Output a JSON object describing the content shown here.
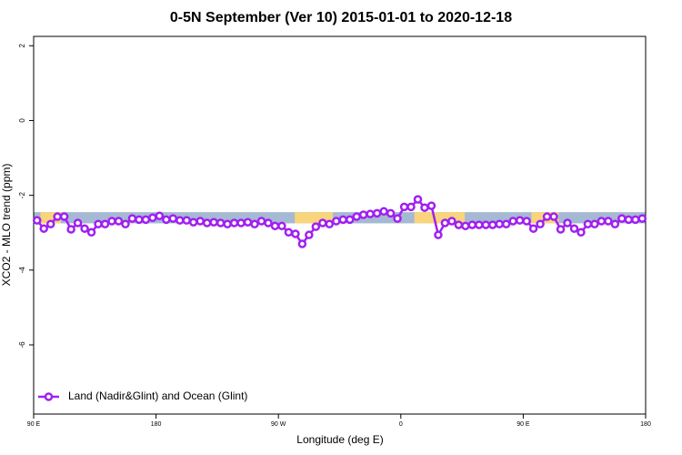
{
  "chart_data": {
    "type": "line",
    "title": "0-5N September (Ver 10)   2015-01-01 to 2020-12-18",
    "x_label": "Longitude (deg E)",
    "y_label": "XCO2 - MLO trend (ppm)",
    "x": [
      92.5,
      97.5,
      102.5,
      107.5,
      112.5,
      117.5,
      122.5,
      127.5,
      132.5,
      137.5,
      142.5,
      147.5,
      152.5,
      157.5,
      162.5,
      167.5,
      172.5,
      177.5,
      182.5,
      187.5,
      192.5,
      197.5,
      202.5,
      207.5,
      212.5,
      217.5,
      222.5,
      227.5,
      232.5,
      237.5,
      242.5,
      247.5,
      252.5,
      257.5,
      262.5,
      267.5,
      272.5,
      277.5,
      282.5,
      287.5,
      292.5,
      297.5,
      302.5,
      307.5,
      312.5,
      317.5,
      322.5,
      327.5,
      332.5,
      337.5,
      342.5,
      347.5,
      352.5,
      357.5,
      362.5,
      367.5,
      372.5,
      377.5,
      382.5,
      387.5,
      392.5,
      397.5,
      402.5,
      407.5,
      412.5,
      417.5,
      422.5,
      427.5,
      432.5,
      437.5,
      442.5,
      447.5,
      452.5,
      457.5,
      462.5,
      467.5,
      472.5,
      477.5,
      482.5,
      487.5,
      492.5,
      497.5,
      502.5,
      507.5,
      512.5,
      517.5,
      522.5,
      527.5,
      532.5,
      537.5
    ],
    "series": [
      {
        "name": "Land (Nadir&Glint) and Ocean (Glint)",
        "color": "#a020f0",
        "values": [
          -2.67,
          -2.89,
          -2.77,
          -2.57,
          -2.57,
          -2.91,
          -2.74,
          -2.89,
          -2.99,
          -2.77,
          -2.77,
          -2.69,
          -2.69,
          -2.77,
          -2.62,
          -2.65,
          -2.65,
          -2.6,
          -2.55,
          -2.65,
          -2.62,
          -2.67,
          -2.67,
          -2.72,
          -2.69,
          -2.74,
          -2.72,
          -2.74,
          -2.77,
          -2.74,
          -2.74,
          -2.72,
          -2.77,
          -2.69,
          -2.74,
          -2.82,
          -2.82,
          -2.99,
          -3.03,
          -3.3,
          -3.06,
          -2.84,
          -2.74,
          -2.77,
          -2.69,
          -2.65,
          -2.65,
          -2.57,
          -2.52,
          -2.5,
          -2.48,
          -2.43,
          -2.48,
          -2.62,
          -2.31,
          -2.31,
          -2.11,
          -2.33,
          -2.28,
          -3.06,
          -2.74,
          -2.69,
          -2.79,
          -2.82,
          -2.79,
          -2.79,
          -2.79,
          -2.79,
          -2.77,
          -2.77,
          -2.69,
          -2.67,
          -2.69,
          -2.89,
          -2.77,
          -2.57,
          -2.57,
          -2.91,
          -2.74,
          -2.89,
          -2.99,
          -2.77,
          -2.77,
          -2.69,
          -2.69,
          -2.77,
          -2.62,
          -2.65,
          -2.65,
          -2.62
        ]
      }
    ],
    "bands": {
      "y_range": [
        -2.75,
        -2.45
      ],
      "ocean_color": "#a6b9d3",
      "land_color": "#f8d57c",
      "land": [
        [
          95,
          110
        ],
        [
          282,
          310
        ],
        [
          370,
          407
        ],
        [
          456,
          476
        ]
      ]
    },
    "xlim": [
      90,
      540
    ],
    "xticks": [
      {
        "value": 90,
        "label": "90 E"
      },
      {
        "value": 180,
        "label": "180"
      },
      {
        "value": 270,
        "label": "90 W"
      },
      {
        "value": 360,
        "label": "0"
      },
      {
        "value": 450,
        "label": "90 E"
      },
      {
        "value": 540,
        "label": "180"
      }
    ],
    "ylim": [
      -7.85,
      2.25
    ],
    "yticks": [
      -6,
      -4,
      -2,
      0,
      2
    ],
    "legend": "bottom-left"
  }
}
